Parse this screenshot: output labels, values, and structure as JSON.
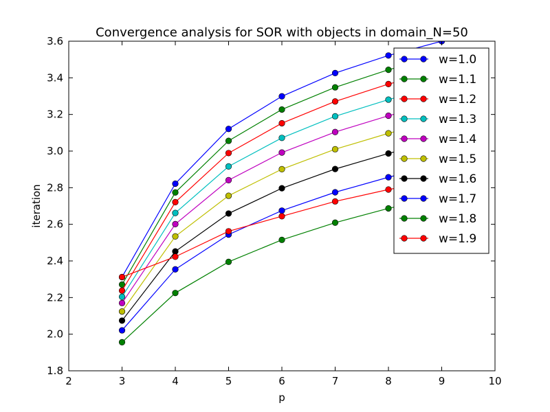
{
  "chart_data": {
    "type": "line",
    "title": "Convergence analysis for SOR with objects in domain_N=50",
    "xlabel": "p",
    "ylabel": "iteration",
    "xlim": [
      2,
      10
    ],
    "ylim": [
      1.8,
      3.6
    ],
    "x_ticks": [
      2,
      3,
      4,
      5,
      6,
      7,
      8,
      9,
      10
    ],
    "y_ticks": [
      1.8,
      2.0,
      2.2,
      2.4,
      2.6,
      2.8,
      3.0,
      3.2,
      3.4,
      3.6
    ],
    "x_tick_labels": [
      "2",
      "3",
      "4",
      "5",
      "6",
      "7",
      "8",
      "9",
      "10"
    ],
    "y_tick_labels": [
      "1.8",
      "2.0",
      "2.2",
      "2.4",
      "2.6",
      "2.8",
      "3.0",
      "3.2",
      "3.4",
      "3.6"
    ],
    "grid": false,
    "legend_position": "top-right",
    "x": [
      3,
      4,
      5,
      6,
      7,
      8,
      9
    ],
    "series": [
      {
        "name": "w=1.0",
        "color": "#0000ff",
        "values": [
          2.312,
          2.822,
          3.121,
          3.299,
          3.426,
          3.522,
          3.6
        ]
      },
      {
        "name": "w=1.1",
        "color": "#008000",
        "values": [
          2.271,
          2.774,
          3.056,
          3.227,
          3.348,
          3.444,
          3.52
        ]
      },
      {
        "name": "w=1.2",
        "color": "#ff0000",
        "values": [
          2.238,
          2.721,
          2.989,
          3.152,
          3.271,
          3.366,
          3.44
        ]
      },
      {
        "name": "w=1.3",
        "color": "#00bfbf",
        "values": [
          2.204,
          2.662,
          2.916,
          3.072,
          3.19,
          3.281,
          3.36
        ]
      },
      {
        "name": "w=1.4",
        "color": "#bf00bf",
        "values": [
          2.17,
          2.601,
          2.841,
          2.992,
          3.104,
          3.193,
          3.27
        ]
      },
      {
        "name": "w=1.5",
        "color": "#bfbf00",
        "values": [
          2.124,
          2.534,
          2.756,
          2.901,
          3.01,
          3.097,
          3.17
        ]
      },
      {
        "name": "w=1.6",
        "color": "#000000",
        "values": [
          2.074,
          2.452,
          2.659,
          2.797,
          2.902,
          2.987,
          3.06
        ]
      },
      {
        "name": "w=1.7",
        "color": "#0000ff",
        "values": [
          2.021,
          2.354,
          2.544,
          2.675,
          2.775,
          2.857,
          2.93
        ]
      },
      {
        "name": "w=1.8",
        "color": "#008000",
        "values": [
          1.956,
          2.225,
          2.395,
          2.515,
          2.609,
          2.687,
          2.75
        ]
      },
      {
        "name": "w=1.9",
        "color": "#ff0000",
        "values": [
          2.312,
          2.423,
          2.562,
          2.644,
          2.725,
          2.79,
          2.84
        ]
      }
    ]
  }
}
